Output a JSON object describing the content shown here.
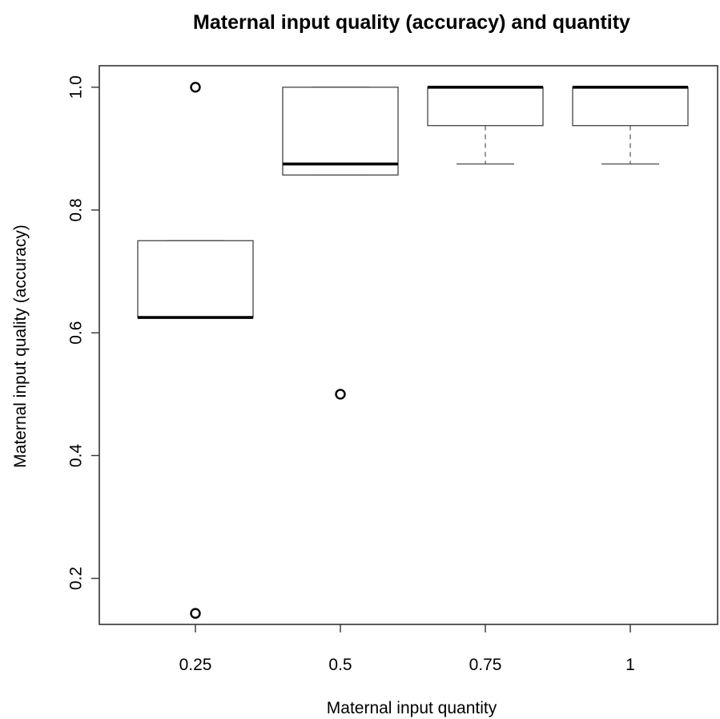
{
  "chart_data": {
    "type": "boxplot",
    "title": "Maternal input quality (accuracy) and quantity",
    "xlabel": "Maternal input quantity",
    "ylabel": "Maternal input quality (accuracy)",
    "categories": [
      "0.25",
      "0.5",
      "0.75",
      "1"
    ],
    "y_ticks": [
      "0.2",
      "0.4",
      "0.6",
      "0.8",
      "1.0"
    ],
    "ylim": [
      0.125,
      1.035
    ],
    "grid": false,
    "boxes": [
      {
        "category": "0.25",
        "whisker_low": 0.625,
        "q1": 0.625,
        "median": 0.625,
        "q3": 0.75,
        "whisker_high": 0.75,
        "outliers": [
          1.0,
          0.143
        ]
      },
      {
        "category": "0.5",
        "whisker_low": 0.857,
        "q1": 0.857,
        "median": 0.875,
        "q3": 1.0,
        "whisker_high": 1.0,
        "outliers": [
          0.5
        ]
      },
      {
        "category": "0.75",
        "whisker_low": 0.875,
        "q1": 0.9375,
        "median": 1.0,
        "q3": 1.0,
        "whisker_high": 1.0,
        "outliers": []
      },
      {
        "category": "1",
        "whisker_low": 0.875,
        "q1": 0.9375,
        "median": 1.0,
        "q3": 1.0,
        "whisker_high": 1.0,
        "outliers": []
      }
    ]
  }
}
